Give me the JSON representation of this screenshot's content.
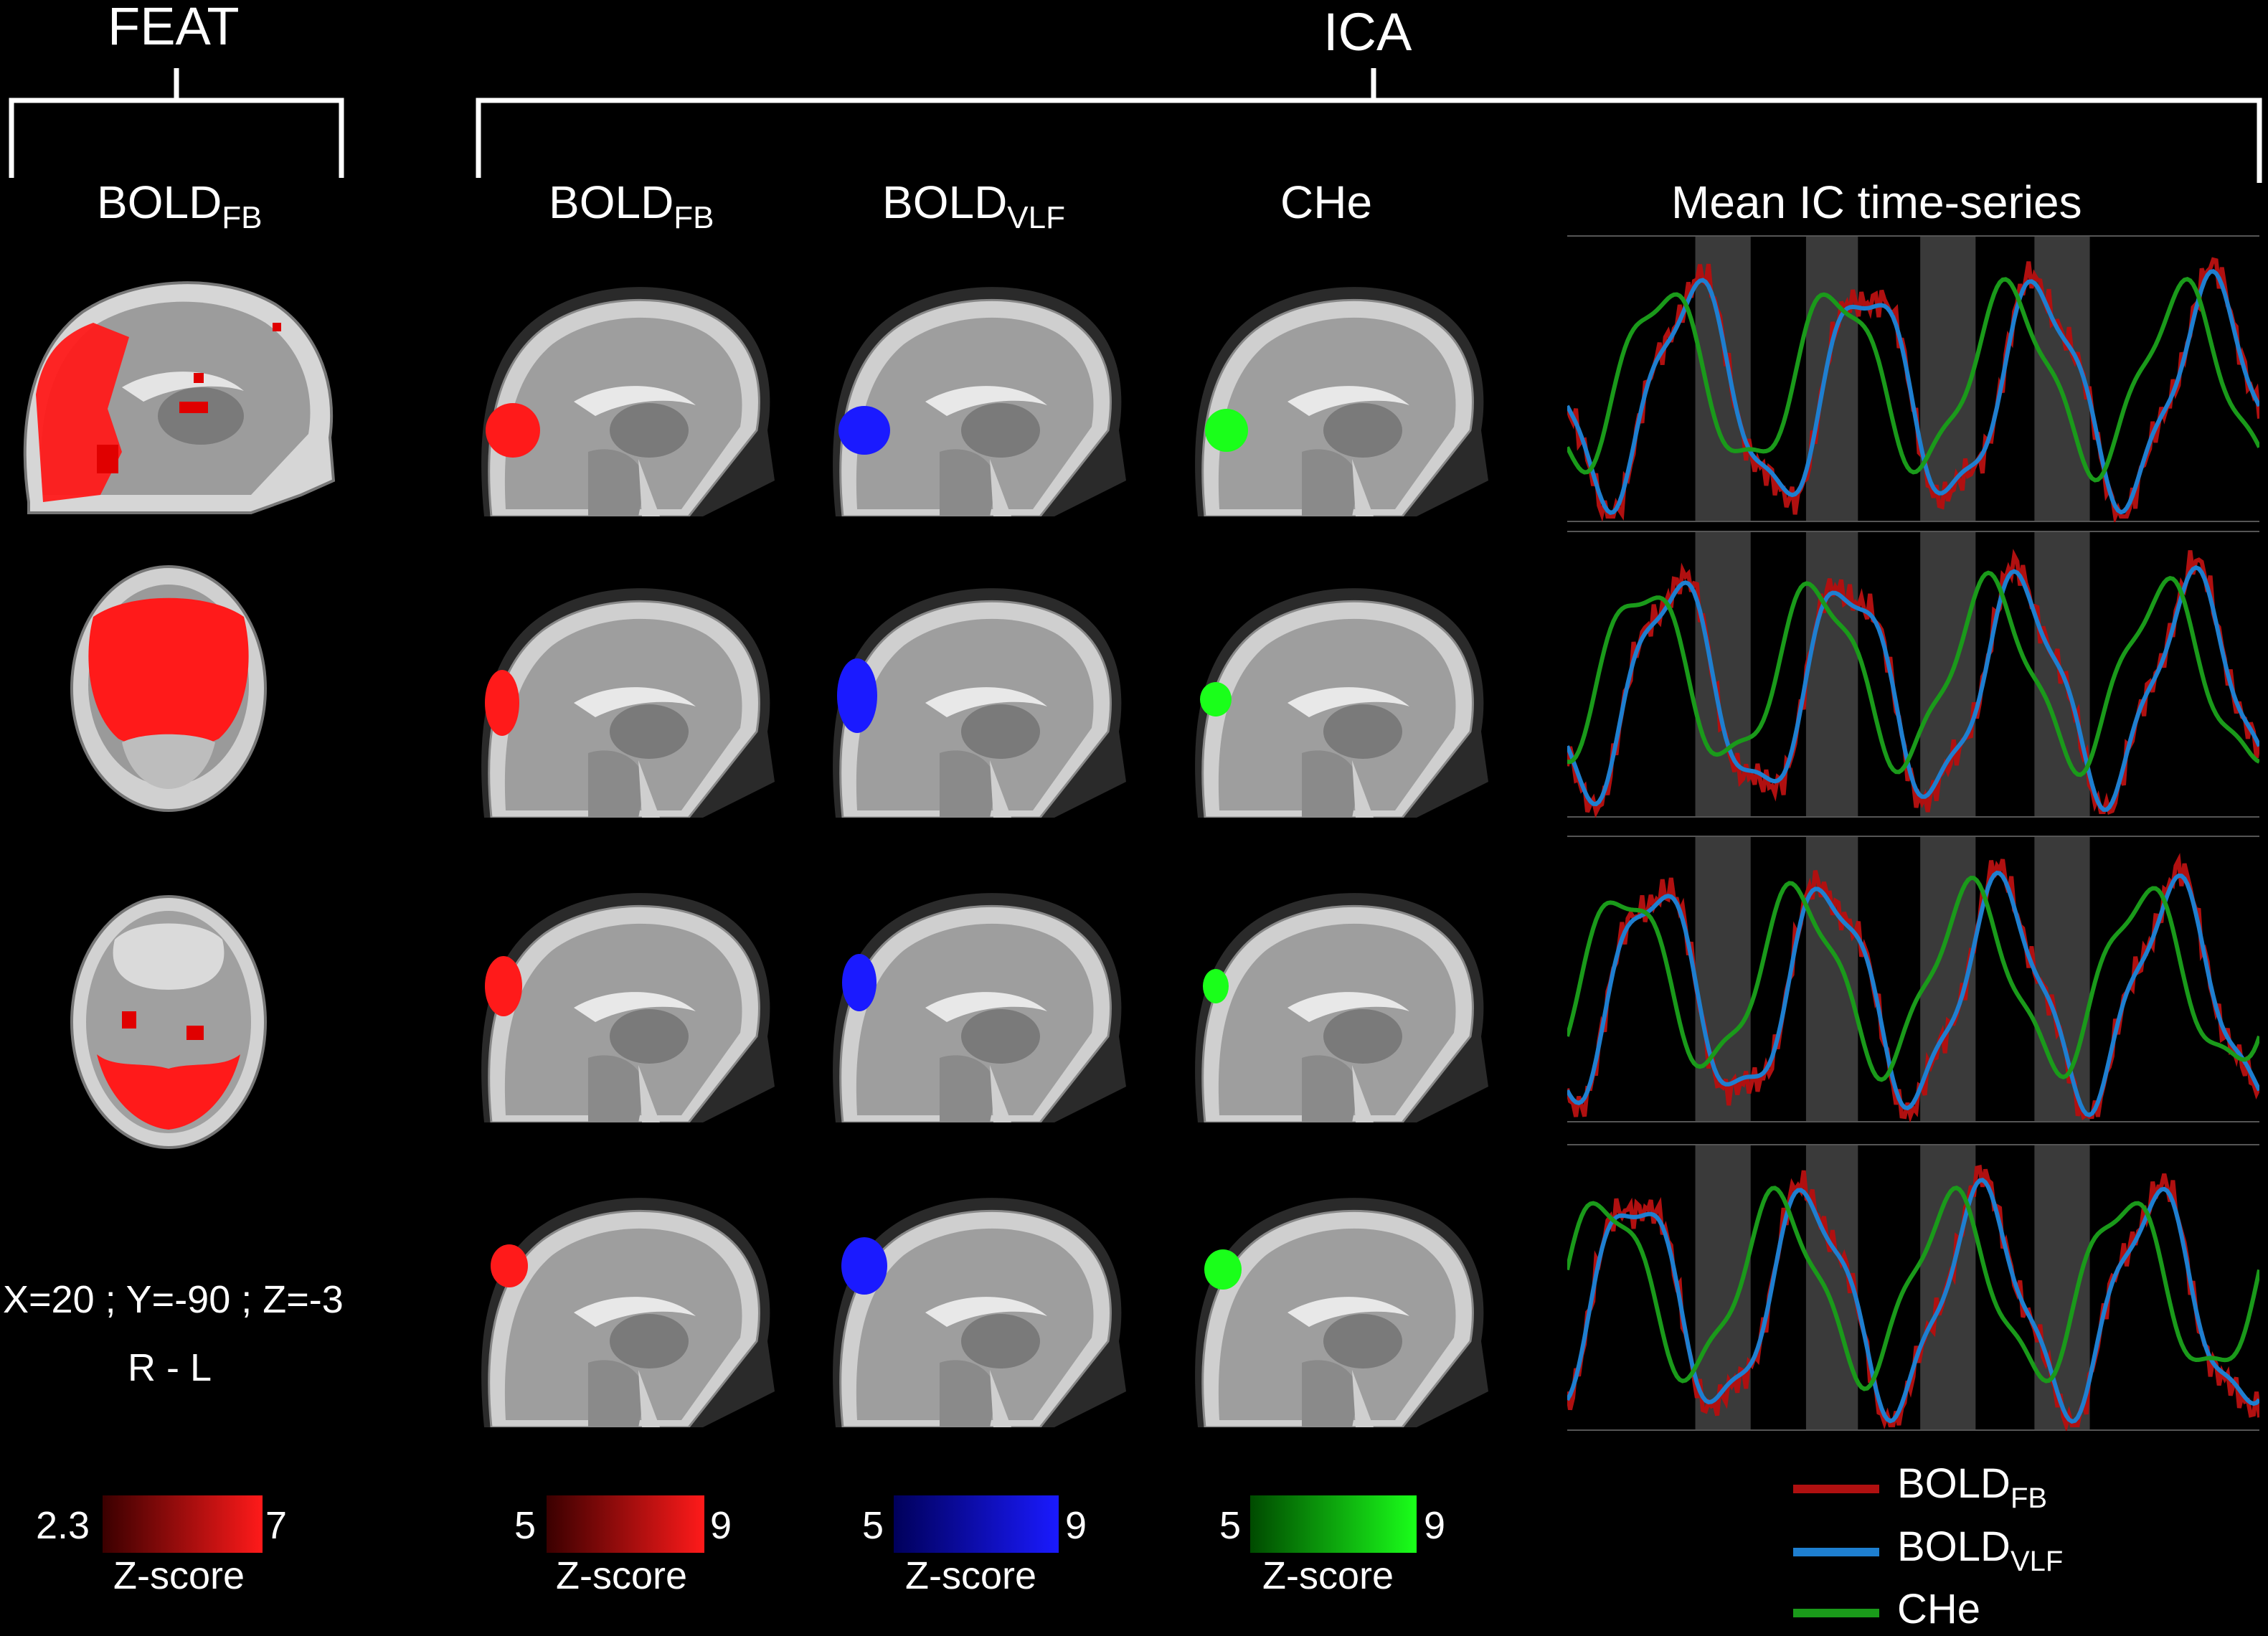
{
  "groups": {
    "feat": "FEAT",
    "ica": "ICA"
  },
  "columns": {
    "feat_bold": {
      "main": "BOLD",
      "sub": "FB"
    },
    "ica_bold_fb": {
      "main": "BOLD",
      "sub": "FB"
    },
    "ica_bold_vlf": {
      "main": "BOLD",
      "sub": "VLF"
    },
    "ica_che": {
      "main": "CHe",
      "sub": ""
    },
    "timeseries": "Mean IC time-series"
  },
  "coords": "X=20 ; Y=-90 ; Z=-3",
  "orientation": "R - L",
  "colorbars": [
    {
      "min": "2.3",
      "max": "7",
      "label": "Z-score",
      "color_low": "#3a0000",
      "color_high": "#ff1a1a"
    },
    {
      "min": "5",
      "max": "9",
      "label": "Z-score",
      "color_low": "#3a0000",
      "color_high": "#ff1a1a"
    },
    {
      "min": "5",
      "max": "9",
      "label": "Z-score",
      "color_low": "#00005a",
      "color_high": "#1a1aff"
    },
    {
      "min": "5",
      "max": "9",
      "label": "Z-score",
      "color_low": "#004a00",
      "color_high": "#1aff1a"
    }
  ],
  "legend": [
    {
      "main": "BOLD",
      "sub": "FB",
      "color": "#b01010"
    },
    {
      "main": "BOLD",
      "sub": "VLF",
      "color": "#1e7fd0"
    },
    {
      "main": "CHe",
      "sub": "",
      "color": "#1a9a1a"
    }
  ],
  "colors": {
    "red": "#ff1a1a",
    "blue": "#1a1aff",
    "green": "#1aff1a",
    "block_shade": "#3a3a3a"
  }
}
